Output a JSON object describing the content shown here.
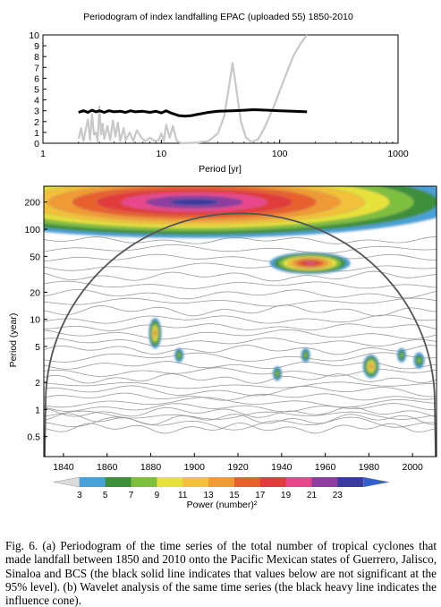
{
  "figure_a": {
    "title": "Periodogram of index landfalling EPAC (uploaded 55) 1850-2010",
    "xlabel": "Period [yr]",
    "x_ticks": [
      "1",
      "10",
      "100",
      "1000"
    ],
    "y_ticks": [
      "0",
      "1",
      "2",
      "3",
      "4",
      "5",
      "6",
      "7",
      "8",
      "9",
      "10"
    ],
    "xscale": "log",
    "xlim": [
      1,
      1000
    ],
    "ylim": [
      0,
      10
    ],
    "series_colors": {
      "spectrum": "#c8c8c8",
      "significance": "#000000"
    }
  },
  "figure_b": {
    "ylabel": "Period (year)",
    "y_ticks": [
      "200",
      "100",
      "50",
      "20",
      "10",
      "5",
      "2",
      "1",
      "0.5"
    ],
    "x_ticks": [
      "1840",
      "1860",
      "1880",
      "1900",
      "1920",
      "1940",
      "1960",
      "1980",
      "2000"
    ],
    "xlim": [
      1831,
      2011
    ],
    "ylim": [
      0.3,
      300
    ],
    "colorbar_label": "Power (number)²",
    "colorbar_ticks": [
      "3",
      "5",
      "7",
      "9",
      "11",
      "13",
      "15",
      "17",
      "19",
      "21",
      "23"
    ],
    "colorbar_colors": [
      "#dcdcdc",
      "#4aa0d8",
      "#3d8f3a",
      "#7fbf3f",
      "#e6e23a",
      "#f2c03a",
      "#f09a35",
      "#e8602d",
      "#e23b3b",
      "#e8478c",
      "#8e3ea0",
      "#3a3aa0",
      "#3060c8"
    ]
  },
  "caption": {
    "text": "Fig. 6. (a) Periodogram of the time series of the total number of tropical cyclones that made landfall between 1850 and 2010 onto the Pacific Mexican states of Guerrero, Jalisco, Sinaloa and BCS (the black solid line indicates that values below are not significant at the 95% level). (b) Wavelet analysis of the same time series (the black heavy line indicates the influence cone)."
  },
  "chart_data": [
    {
      "type": "line",
      "title": "Periodogram of index landfalling EPAC (uploaded 55) 1850-2010",
      "xlabel": "Period [yr]",
      "ylabel": "",
      "xlim": [
        1,
        1000
      ],
      "ylim": [
        0,
        10
      ],
      "xscale": "log",
      "series": [
        {
          "points": [
            [
              2.0,
              0.4
            ],
            [
              2.1,
              1.4
            ],
            [
              2.2,
              0.2
            ],
            [
              2.3,
              1.3
            ],
            [
              2.4,
              2.2
            ],
            [
              2.5,
              0.3
            ],
            [
              2.6,
              2.7
            ],
            [
              2.7,
              0.8
            ],
            [
              2.8,
              1.0
            ],
            [
              2.9,
              0.2
            ],
            [
              3.0,
              3.4
            ],
            [
              3.1,
              0.8
            ],
            [
              3.2,
              1.8
            ],
            [
              3.3,
              0.4
            ],
            [
              3.5,
              1.6
            ],
            [
              3.7,
              0.3
            ],
            [
              3.9,
              2.1
            ],
            [
              4.1,
              0.6
            ],
            [
              4.3,
              1.9
            ],
            [
              4.5,
              0.2
            ],
            [
              4.8,
              1.4
            ],
            [
              5.0,
              0.3
            ],
            [
              5.4,
              1.0
            ],
            [
              5.8,
              0.2
            ],
            [
              6.2,
              1.2
            ],
            [
              6.8,
              0.5
            ],
            [
              7.3,
              0.2
            ],
            [
              8.0,
              0.5
            ],
            [
              8.8,
              0.2
            ],
            [
              9.5,
              0.3
            ],
            [
              10.0,
              0.9
            ],
            [
              10.5,
              0.2
            ],
            [
              11.0,
              1.7
            ],
            [
              11.8,
              0.5
            ],
            [
              12.5,
              1.6
            ],
            [
              13.5,
              0.2
            ],
            [
              15,
              0.0
            ],
            [
              20,
              0.05
            ],
            [
              25,
              0.2
            ],
            [
              30,
              0.9
            ],
            [
              34,
              2.5
            ],
            [
              37,
              5.0
            ],
            [
              40,
              7.4
            ],
            [
              43,
              5.0
            ],
            [
              47,
              2.0
            ],
            [
              52,
              0.5
            ],
            [
              58,
              0.1
            ],
            [
              66,
              0.4
            ],
            [
              75,
              1.5
            ],
            [
              90,
              3.5
            ],
            [
              110,
              6.0
            ],
            [
              130,
              8.0
            ],
            [
              150,
              9.2
            ],
            [
              170,
              10.0
            ]
          ]
        },
        {
          "points": [
            [
              2.0,
              2.85
            ],
            [
              2.2,
              3.0
            ],
            [
              2.4,
              2.85
            ],
            [
              2.6,
              3.05
            ],
            [
              2.8,
              2.9
            ],
            [
              3.0,
              3.0
            ],
            [
              3.3,
              2.85
            ],
            [
              3.6,
              3.0
            ],
            [
              4.0,
              2.9
            ],
            [
              4.5,
              2.95
            ],
            [
              5.0,
              2.85
            ],
            [
              5.5,
              3.0
            ],
            [
              6.0,
              2.9
            ],
            [
              7.0,
              2.95
            ],
            [
              8.0,
              2.85
            ],
            [
              9.0,
              2.95
            ],
            [
              10.0,
              2.8
            ],
            [
              11.0,
              3.0
            ],
            [
              12.0,
              2.8
            ],
            [
              14,
              2.55
            ],
            [
              16,
              2.5
            ],
            [
              18,
              2.55
            ],
            [
              20,
              2.65
            ],
            [
              25,
              2.85
            ],
            [
              30,
              2.95
            ],
            [
              40,
              3.0
            ],
            [
              50,
              3.05
            ],
            [
              60,
              3.1
            ],
            [
              80,
              3.05
            ],
            [
              100,
              3.0
            ],
            [
              130,
              2.95
            ],
            [
              170,
              2.9
            ]
          ]
        }
      ]
    },
    {
      "type": "heatmap",
      "title": "",
      "xlabel": "",
      "ylabel": "Period (year)",
      "xlim": [
        1831,
        2011
      ],
      "ylim": [
        0.3,
        300
      ],
      "yscale": "log",
      "colorbar_label": "Power (number)²",
      "colorbar_ticks": [
        3,
        5,
        7,
        9,
        11,
        13,
        15,
        17,
        19,
        21,
        23
      ],
      "features": [
        {
          "x": 1900,
          "y": 200,
          "max_power": 23
        },
        {
          "x": 1953,
          "y": 42,
          "max_power": 19
        },
        {
          "x": 1882,
          "y": 7,
          "max_power": 13
        },
        {
          "x": 1893,
          "y": 4,
          "max_power": 7
        },
        {
          "x": 1938,
          "y": 2.5,
          "max_power": 7
        },
        {
          "x": 1951,
          "y": 4,
          "max_power": 7
        },
        {
          "x": 1981,
          "y": 3,
          "max_power": 13
        },
        {
          "x": 1995,
          "y": 4,
          "max_power": 7
        },
        {
          "x": 2003,
          "y": 3.5,
          "max_power": 7
        }
      ]
    }
  ]
}
